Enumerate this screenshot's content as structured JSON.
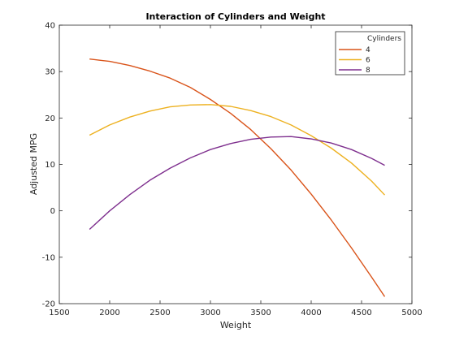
{
  "chart_data": {
    "type": "line",
    "title": "Interaction of Cylinders and Weight",
    "xlabel": "Weight",
    "ylabel": "Adjusted MPG",
    "xlim": [
      1500,
      5000
    ],
    "ylim": [
      -20,
      40
    ],
    "xticks": [
      "1500",
      "2000",
      "2500",
      "3000",
      "3500",
      "4000",
      "4500",
      "5000"
    ],
    "yticks": [
      "-20",
      "-10",
      "0",
      "10",
      "20",
      "30",
      "40"
    ],
    "grid": false,
    "legend": {
      "title": "Cylinders",
      "position": "top-right"
    },
    "series": [
      {
        "name": "4",
        "color": "#d95319",
        "x": [
          1800,
          2000,
          2200,
          2400,
          2600,
          2800,
          3000,
          3200,
          3400,
          3600,
          3800,
          4000,
          4200,
          4400,
          4600,
          4730
        ],
        "y": [
          32.7,
          32.2,
          31.3,
          30.1,
          28.6,
          26.6,
          24.0,
          21.0,
          17.5,
          13.4,
          8.8,
          3.6,
          -2.0,
          -8.0,
          -14.3,
          -18.5
        ]
      },
      {
        "name": "6",
        "color": "#edb120",
        "x": [
          1800,
          2000,
          2200,
          2400,
          2600,
          2800,
          3000,
          3200,
          3400,
          3600,
          3800,
          4000,
          4200,
          4400,
          4600,
          4730
        ],
        "y": [
          16.3,
          18.5,
          20.2,
          21.5,
          22.4,
          22.8,
          22.9,
          22.5,
          21.6,
          20.3,
          18.5,
          16.2,
          13.5,
          10.3,
          6.4,
          3.4
        ]
      },
      {
        "name": "8",
        "color": "#7e2f8e",
        "x": [
          1800,
          2000,
          2200,
          2400,
          2600,
          2800,
          3000,
          3200,
          3400,
          3600,
          3800,
          4000,
          4200,
          4400,
          4600,
          4730
        ],
        "y": [
          -4.0,
          0.0,
          3.5,
          6.6,
          9.2,
          11.4,
          13.2,
          14.5,
          15.4,
          15.9,
          16.0,
          15.5,
          14.6,
          13.2,
          11.3,
          9.8
        ]
      }
    ]
  }
}
